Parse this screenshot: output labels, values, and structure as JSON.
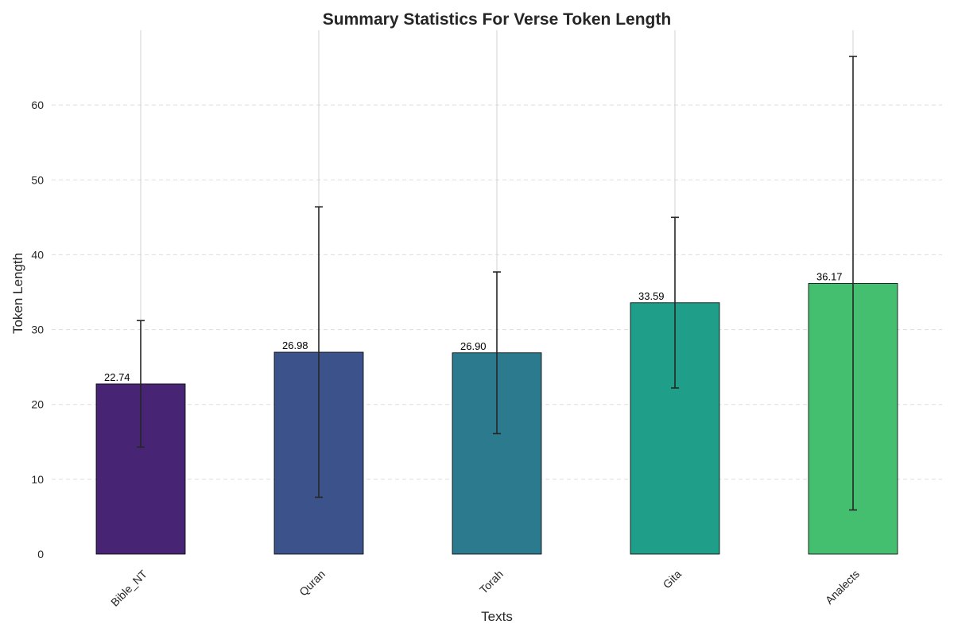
{
  "chart_data": {
    "type": "bar",
    "title": "Summary Statistics For Verse Token Length",
    "xlabel": "Texts",
    "ylabel": "Token Length",
    "categories": [
      "Bible_NT",
      "Quran",
      "Torah",
      "Gita",
      "Analects"
    ],
    "values": [
      22.74,
      26.98,
      26.9,
      33.59,
      36.17
    ],
    "value_labels": [
      "22.74",
      "26.98",
      "26.90",
      "33.59",
      "36.17"
    ],
    "error_low": [
      14.3,
      7.6,
      16.1,
      22.2,
      5.9
    ],
    "error_high": [
      31.2,
      46.4,
      37.7,
      45.0,
      66.5
    ],
    "bar_colors": [
      "#482475",
      "#3b528b",
      "#2c7a8e",
      "#1f9e89",
      "#44bf70"
    ],
    "ylim": [
      0,
      70
    ],
    "yticks": [
      0,
      10,
      20,
      30,
      40,
      50,
      60
    ],
    "grid": "y-dashed",
    "legend": "none"
  }
}
